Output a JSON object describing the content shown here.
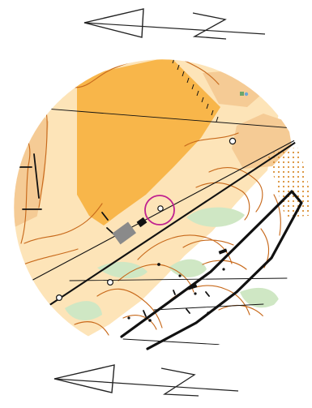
{
  "map": {
    "background": "#ffffff",
    "colors": {
      "open_land": "#f8b64a",
      "rough_open": "#fde4b8",
      "light_rough": "#f5cb95",
      "sandy_patch": "#f4c47d",
      "forest": "#ffffff",
      "vegetation_green": "#cfe7c4",
      "contour_brown": "#c86a1c",
      "black": "#111111",
      "control_circle": "#c0208f",
      "water_blue": "#6fa7d8",
      "north_line": "#222222"
    },
    "icons": [
      "north-arrow-icon",
      "control-circle-icon",
      "road-icon",
      "fence-icon",
      "building-icon",
      "contour-icon",
      "boulder-icon"
    ]
  }
}
